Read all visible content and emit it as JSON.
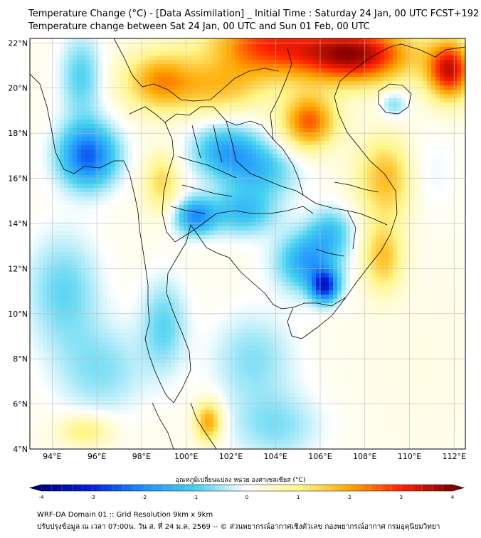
{
  "title": {
    "line1": "Temperature Change (°C) - [Data Assimilation] _ Initial Time : Saturday 24 Jan, 00 UTC FCST+192",
    "line2": "Temperature change between Sat 24 Jan, 00 UTC and Sun 01 Feb, 00 UTC"
  },
  "map": {
    "lon_range": [
      93,
      112.5
    ],
    "lat_range": [
      4,
      22.2
    ],
    "x_ticks": [
      {
        "value": 94,
        "label": "94°E"
      },
      {
        "value": 96,
        "label": "96°E"
      },
      {
        "value": 98,
        "label": "98°E"
      },
      {
        "value": 100,
        "label": "100°E"
      },
      {
        "value": 102,
        "label": "102°E"
      },
      {
        "value": 104,
        "label": "104°E"
      },
      {
        "value": 106,
        "label": "106°E"
      },
      {
        "value": 108,
        "label": "108°E"
      },
      {
        "value": 110,
        "label": "110°E"
      },
      {
        "value": 112,
        "label": "112°E"
      }
    ],
    "y_ticks": [
      {
        "value": 22,
        "label": "22°N"
      },
      {
        "value": 20,
        "label": "20°N"
      },
      {
        "value": 18,
        "label": "18°N"
      },
      {
        "value": 16,
        "label": "16°N"
      },
      {
        "value": 14,
        "label": "14°N"
      },
      {
        "value": 12,
        "label": "12°N"
      },
      {
        "value": 10,
        "label": "10°N"
      },
      {
        "value": 8,
        "label": "8°N"
      },
      {
        "value": 6,
        "label": "6°N"
      },
      {
        "value": 4,
        "label": "4°N"
      }
    ],
    "grid": true,
    "background_value": 0.15,
    "field_features": [
      {
        "lon": 95.6,
        "lat": 17.0,
        "value": -2.6,
        "spread_lon": 1.3,
        "spread_lat": 1.4
      },
      {
        "lon": 95.3,
        "lat": 20.5,
        "value": -1.1,
        "spread_lon": 0.9,
        "spread_lat": 1.8
      },
      {
        "lon": 98.8,
        "lat": 20.3,
        "value": 1.9,
        "spread_lon": 1.6,
        "spread_lat": 1.3
      },
      {
        "lon": 103.5,
        "lat": 22.0,
        "value": 2.5,
        "spread_lon": 2.5,
        "spread_lat": 1.5
      },
      {
        "lon": 107.5,
        "lat": 21.5,
        "value": 3.6,
        "spread_lon": 2.6,
        "spread_lat": 1.3
      },
      {
        "lon": 111.8,
        "lat": 20.8,
        "value": 3.2,
        "spread_lon": 1.0,
        "spread_lat": 1.3
      },
      {
        "lon": 105.5,
        "lat": 18.5,
        "value": 2.4,
        "spread_lon": 1.2,
        "spread_lat": 1.2
      },
      {
        "lon": 109.3,
        "lat": 19.3,
        "value": -0.9,
        "spread_lon": 0.6,
        "spread_lat": 0.6
      },
      {
        "lon": 101.5,
        "lat": 20.0,
        "value": 1.3,
        "spread_lon": 2.0,
        "spread_lat": 1.2
      },
      {
        "lon": 109.0,
        "lat": 16.0,
        "value": 1.7,
        "spread_lon": 1.3,
        "spread_lat": 1.8
      },
      {
        "lon": 108.8,
        "lat": 12.5,
        "value": 1.5,
        "spread_lon": 0.9,
        "spread_lat": 1.5
      },
      {
        "lon": 110.5,
        "lat": 16.2,
        "value": -0.4,
        "spread_lon": 1.4,
        "spread_lat": 1.8
      },
      {
        "lon": 98.9,
        "lat": 15.8,
        "value": 1.2,
        "spread_lon": 0.8,
        "spread_lat": 1.3
      },
      {
        "lon": 101.8,
        "lat": 17.2,
        "value": -1.7,
        "spread_lon": 1.5,
        "spread_lat": 1.2
      },
      {
        "lon": 103.4,
        "lat": 16.3,
        "value": -1.2,
        "spread_lon": 1.6,
        "spread_lat": 1.2
      },
      {
        "lon": 100.4,
        "lat": 14.3,
        "value": -2.0,
        "spread_lon": 0.9,
        "spread_lat": 0.8
      },
      {
        "lon": 102.5,
        "lat": 14.5,
        "value": -1.4,
        "spread_lon": 1.5,
        "spread_lat": 1.0
      },
      {
        "lon": 105.5,
        "lat": 12.3,
        "value": -1.9,
        "spread_lon": 1.4,
        "spread_lat": 1.3
      },
      {
        "lon": 106.2,
        "lat": 11.2,
        "value": -2.8,
        "spread_lon": 0.6,
        "spread_lat": 0.7
      },
      {
        "lon": 106.5,
        "lat": 13.7,
        "value": -1.1,
        "spread_lon": 1.0,
        "spread_lat": 1.0
      },
      {
        "lon": 94.5,
        "lat": 11.0,
        "value": -1.0,
        "spread_lon": 1.6,
        "spread_lat": 2.5
      },
      {
        "lon": 96.2,
        "lat": 7.5,
        "value": -0.8,
        "spread_lon": 2.0,
        "spread_lat": 2.0
      },
      {
        "lon": 99.0,
        "lat": 9.5,
        "value": -1.0,
        "spread_lon": 1.0,
        "spread_lat": 2.0
      },
      {
        "lon": 103.0,
        "lat": 8.0,
        "value": -0.8,
        "spread_lon": 1.8,
        "spread_lat": 2.0
      },
      {
        "lon": 104.0,
        "lat": 5.0,
        "value": -0.8,
        "spread_lon": 2.0,
        "spread_lat": 1.5
      },
      {
        "lon": 101.0,
        "lat": 5.2,
        "value": 1.9,
        "spread_lon": 0.6,
        "spread_lat": 0.9
      },
      {
        "lon": 95.5,
        "lat": 4.8,
        "value": 1.0,
        "spread_lon": 1.2,
        "spread_lat": 0.7
      },
      {
        "lon": 110.5,
        "lat": 8.0,
        "value": 0.1,
        "spread_lon": 2.0,
        "spread_lat": 3.5
      }
    ]
  },
  "colorbar": {
    "title": "อุณหภูมิเปลี่ยนแปลง หน่วย องศาเซลเซียส (°C)",
    "range": [
      -4,
      4
    ],
    "ticks": [
      {
        "value": -4,
        "label": "-4"
      },
      {
        "value": -3,
        "label": "-3"
      },
      {
        "value": -2,
        "label": "-2"
      },
      {
        "value": -1,
        "label": "-1"
      },
      {
        "value": 0,
        "label": "0"
      },
      {
        "value": 1,
        "label": "1"
      },
      {
        "value": 2,
        "label": "2"
      },
      {
        "value": 3,
        "label": "3"
      },
      {
        "value": 4,
        "label": "4"
      }
    ],
    "stops": [
      {
        "value": -4,
        "color": "#000080"
      },
      {
        "value": -3,
        "color": "#0022e0"
      },
      {
        "value": -2,
        "color": "#1e90ff"
      },
      {
        "value": -1,
        "color": "#45d0f0"
      },
      {
        "value": 0,
        "color": "#ffffff"
      },
      {
        "value": 1,
        "color": "#fff58a"
      },
      {
        "value": 2,
        "color": "#ffa800"
      },
      {
        "value": 3,
        "color": "#ff2000"
      },
      {
        "value": 4,
        "color": "#800000"
      }
    ]
  },
  "footer": {
    "line1": "WRF-DA Domain 01 :: Grid Resolution 9km x 9km",
    "line2": "ปรับปรุงข้อมูล ณ เวลา 07:00น. วัน ส. ที่ 24 ม.ค. 2569 -- © ส่วนพยากรณ์อากาศเชิงตัวเลข กองพยากรณ์อากาศ กรมอุตุนิยมวิทยา"
  }
}
